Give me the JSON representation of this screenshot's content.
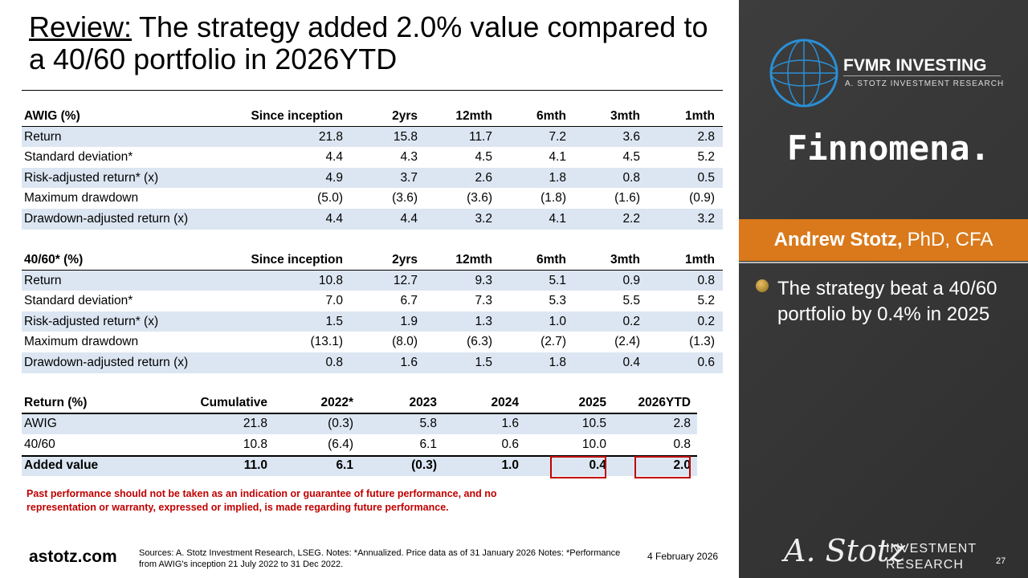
{
  "title": {
    "lead": "Review:",
    "text": "The strategy added 2.0% value compared to a 40/60 portfolio in 2026YTD"
  },
  "table1": {
    "header": [
      "AWIG (%)",
      "Since inception",
      "2yrs",
      "12mth",
      "6mth",
      "3mth",
      "1mth"
    ],
    "rows": [
      [
        "Return",
        "21.8",
        "15.8",
        "11.7",
        "7.2",
        "3.6",
        "2.8"
      ],
      [
        "Standard deviation*",
        "4.4",
        "4.3",
        "4.5",
        "4.1",
        "4.5",
        "5.2"
      ],
      [
        "Risk-adjusted return* (x)",
        "4.9",
        "3.7",
        "2.6",
        "1.8",
        "0.8",
        "0.5"
      ],
      [
        "Maximum drawdown",
        "(5.0)",
        "(3.6)",
        "(3.6)",
        "(1.8)",
        "(1.6)",
        "(0.9)"
      ],
      [
        "Drawdown-adjusted return (x)",
        "4.4",
        "4.4",
        "3.2",
        "4.1",
        "2.2",
        "3.2"
      ]
    ]
  },
  "table2": {
    "header": [
      "40/60* (%)",
      "Since inception",
      "2yrs",
      "12mth",
      "6mth",
      "3mth",
      "1mth"
    ],
    "rows": [
      [
        "Return",
        "10.8",
        "12.7",
        "9.3",
        "5.1",
        "0.9",
        "0.8"
      ],
      [
        "Standard deviation*",
        "7.0",
        "6.7",
        "7.3",
        "5.3",
        "5.5",
        "5.2"
      ],
      [
        "Risk-adjusted return* (x)",
        "1.5",
        "1.9",
        "1.3",
        "1.0",
        "0.2",
        "0.2"
      ],
      [
        "Maximum drawdown",
        "(13.1)",
        "(8.0)",
        "(6.3)",
        "(2.7)",
        "(2.4)",
        "(1.3)"
      ],
      [
        "Drawdown-adjusted return (x)",
        "0.8",
        "1.6",
        "1.5",
        "1.8",
        "0.4",
        "0.6"
      ]
    ]
  },
  "table3": {
    "header": [
      "Return (%)",
      "Cumulative",
      "2022*",
      "2023",
      "2024",
      "2025",
      "2026YTD"
    ],
    "rows": [
      [
        "AWIG",
        "21.8",
        "(0.3)",
        "5.8",
        "1.6",
        "10.5",
        "2.8"
      ],
      [
        "40/60",
        "10.8",
        "(6.4)",
        "6.1",
        "0.6",
        "10.0",
        "0.8"
      ],
      [
        "Added value",
        "11.0",
        "6.1",
        "(0.3)",
        "1.0",
        "0.4",
        "2.0"
      ]
    ]
  },
  "disclaimer": "Past performance should not be taken as an indication or guarantee of future performance, and no representation or warranty, expressed or implied, is made regarding future performance.",
  "footer": {
    "site": "astotz.com",
    "sources": "Sources: A. Stotz Investment Research, LSEG. Notes: *Annualized. Price data as of 31 January 2026 Notes: *Performance from AWIG's inception 21 July 2022 to 31 Dec 2022.",
    "date": "4 February 2026",
    "page": "27"
  },
  "sidebar": {
    "brand": "FVMR INVESTING",
    "brand_sub": "A. STOTZ INVESTMENT RESEARCH",
    "partner": "Finnomena.",
    "name": "Andrew Stotz,",
    "credentials": "PhD, CFA",
    "bullet": "The strategy beat a 40/60 portfolio by 0.4% in 2025",
    "signature": "A. Stotz",
    "logo_line1": "INVESTMENT",
    "logo_line2": "RESEARCH"
  }
}
